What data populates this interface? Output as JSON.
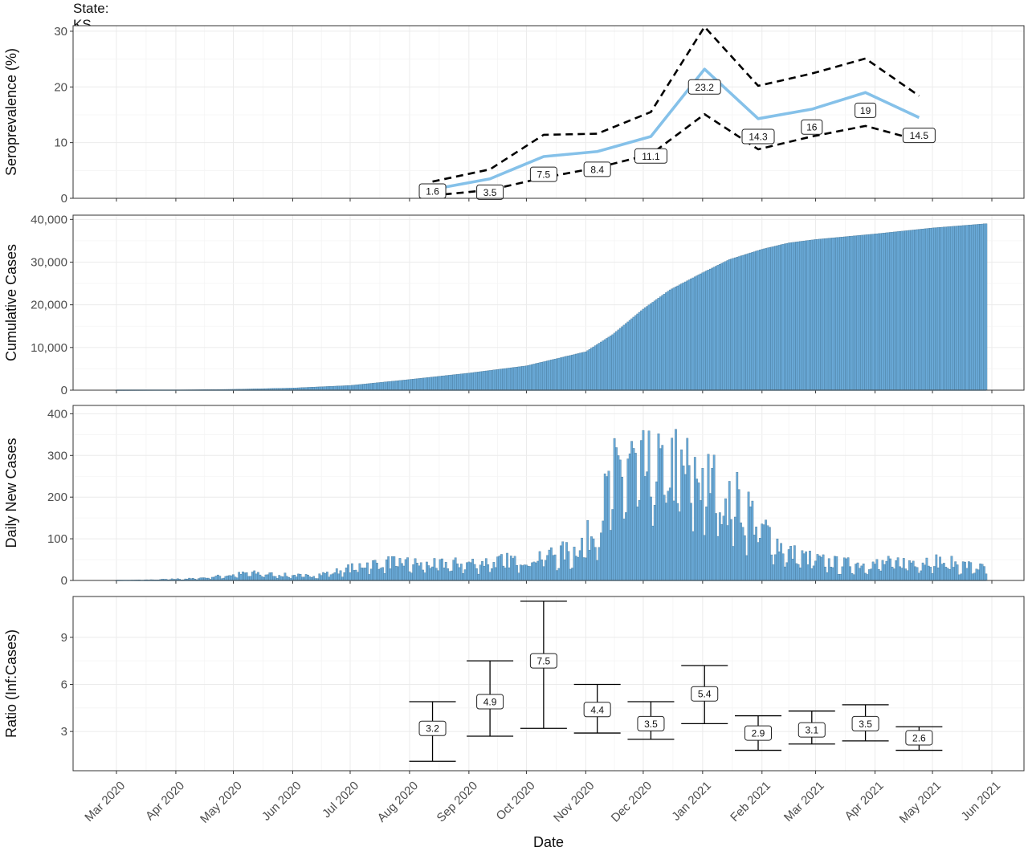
{
  "title": "State: KS",
  "xlabel": "Date",
  "x_ticks": [
    "Mar 2020",
    "Apr 2020",
    "May 2020",
    "Jun 2020",
    "Jul 2020",
    "Aug 2020",
    "Sep 2020",
    "Oct 2020",
    "Nov 2020",
    "Dec 2020",
    "Jan 2021",
    "Feb 2021",
    "Mar 2021",
    "Apr 2021",
    "May 2021",
    "Jun 2021"
  ],
  "x_tick_dates": [
    "2020-03-01",
    "2020-04-01",
    "2020-05-01",
    "2020-06-01",
    "2020-07-01",
    "2020-08-01",
    "2020-09-01",
    "2020-10-01",
    "2020-11-01",
    "2020-12-01",
    "2021-01-01",
    "2021-02-01",
    "2021-03-01",
    "2021-04-01",
    "2021-05-01",
    "2021-06-01"
  ],
  "colors": {
    "series": "#85c1e9",
    "bar_fill": "#6aaad8",
    "bar_edge": "#3f6f8f",
    "ci_line": "#000000",
    "grid_major": "#ebebeb",
    "panel_border": "#333333"
  },
  "chart_data": [
    {
      "type": "line",
      "ylabel": "Seroprevalence (%)",
      "ylim": [
        0,
        31
      ],
      "yticks": [
        0,
        10,
        20,
        30
      ],
      "legend": "none",
      "grid": true,
      "series": [
        {
          "name": "",
          "style": "solid",
          "x": [
            "2020-08-13",
            "2020-09-12",
            "2020-10-10",
            "2020-11-07",
            "2020-12-05",
            "2021-01-02",
            "2021-01-30",
            "2021-02-27",
            "2021-03-27",
            "2021-04-24"
          ],
          "values": [
            1.6,
            3.5,
            7.5,
            8.4,
            11.1,
            23.2,
            14.3,
            16,
            19,
            14.5
          ]
        },
        {
          "name": "",
          "style": "dashed",
          "x": [
            "2020-08-13",
            "2020-09-12",
            "2020-10-10",
            "2020-11-07",
            "2020-12-05",
            "2021-01-02",
            "2021-01-30",
            "2021-02-27",
            "2021-03-27",
            "2021-04-24"
          ],
          "values": [
            3,
            5.2,
            11.4,
            11.6,
            15.5,
            30.8,
            20.2,
            22.4,
            25.1,
            18.4
          ]
        },
        {
          "name": "",
          "style": "dashed",
          "x": [
            "2020-08-13",
            "2020-09-12",
            "2020-10-10",
            "2020-11-07",
            "2020-12-05",
            "2021-01-02",
            "2021-01-30",
            "2021-02-27",
            "2021-03-27",
            "2021-04-24"
          ],
          "values": [
            0.5,
            1.5,
            3.7,
            5.5,
            7.9,
            15.1,
            8.8,
            11.1,
            13,
            10.4
          ]
        }
      ],
      "labels": [
        {
          "x": "2020-08-13",
          "y": 1.3,
          "text": "1.6"
        },
        {
          "x": "2020-09-12",
          "y": 1.1,
          "text": "3.5"
        },
        {
          "x": "2020-10-10",
          "y": 4.3,
          "text": "7.5"
        },
        {
          "x": "2020-11-07",
          "y": 5.2,
          "text": "8.4"
        },
        {
          "x": "2020-12-05",
          "y": 7.6,
          "text": "11.1"
        },
        {
          "x": "2021-01-02",
          "y": 20.0,
          "text": "23.2"
        },
        {
          "x": "2021-01-30",
          "y": 11.1,
          "text": "14.3"
        },
        {
          "x": "2021-02-27",
          "y": 12.8,
          "text": "16"
        },
        {
          "x": "2021-03-27",
          "y": 15.8,
          "text": "19"
        },
        {
          "x": "2021-04-24",
          "y": 11.3,
          "text": "14.5"
        }
      ]
    },
    {
      "type": "bar",
      "ylabel": "Cumulative Cases",
      "ylim": [
        0,
        41000
      ],
      "yticks": [
        0,
        10000,
        20000,
        30000,
        40000
      ],
      "ytick_labels": [
        "0",
        "10,000",
        "20,000",
        "30,000",
        "40,000"
      ],
      "grid": true,
      "x_start": "2020-03-01",
      "x_end": "2021-05-29",
      "curve_points": [
        [
          "2020-03-01",
          0
        ],
        [
          "2020-04-01",
          50
        ],
        [
          "2020-05-01",
          200
        ],
        [
          "2020-06-01",
          500
        ],
        [
          "2020-07-01",
          1100
        ],
        [
          "2020-08-01",
          2500
        ],
        [
          "2020-09-01",
          4000
        ],
        [
          "2020-10-01",
          5700
        ],
        [
          "2020-11-01",
          9000
        ],
        [
          "2020-11-15",
          13000
        ],
        [
          "2020-12-01",
          19000
        ],
        [
          "2020-12-15",
          23500
        ],
        [
          "2021-01-01",
          27500
        ],
        [
          "2021-01-15",
          30600
        ],
        [
          "2021-02-01",
          33000
        ],
        [
          "2021-02-15",
          34500
        ],
        [
          "2021-03-01",
          35300
        ],
        [
          "2021-04-01",
          36600
        ],
        [
          "2021-05-01",
          38000
        ],
        [
          "2021-05-29",
          39000
        ]
      ]
    },
    {
      "type": "bar",
      "ylabel": "Daily New Cases",
      "ylim": [
        0,
        420
      ],
      "yticks": [
        0,
        100,
        200,
        300,
        400
      ],
      "grid": true,
      "x_start": "2020-03-01",
      "x_end": "2021-05-29",
      "curve_points": [
        [
          "2020-03-01",
          0
        ],
        [
          "2020-03-20",
          2
        ],
        [
          "2020-04-10",
          5
        ],
        [
          "2020-04-25",
          12
        ],
        [
          "2020-05-10",
          20
        ],
        [
          "2020-05-25",
          15
        ],
        [
          "2020-06-10",
          12
        ],
        [
          "2020-06-25",
          25
        ],
        [
          "2020-07-10",
          45
        ],
        [
          "2020-07-25",
          50
        ],
        [
          "2020-08-10",
          42
        ],
        [
          "2020-08-25",
          45
        ],
        [
          "2020-09-10",
          50
        ],
        [
          "2020-09-25",
          55
        ],
        [
          "2020-10-10",
          70
        ],
        [
          "2020-10-25",
          78
        ],
        [
          "2020-11-05",
          130
        ],
        [
          "2020-11-15",
          270
        ],
        [
          "2020-11-22",
          330
        ],
        [
          "2020-12-01",
          290
        ],
        [
          "2020-12-15",
          310
        ],
        [
          "2021-01-01",
          280
        ],
        [
          "2021-01-15",
          230
        ],
        [
          "2021-01-25",
          190
        ],
        [
          "2021-02-05",
          120
        ],
        [
          "2021-02-15",
          75
        ],
        [
          "2021-03-01",
          55
        ],
        [
          "2021-03-15",
          45
        ],
        [
          "2021-04-01",
          45
        ],
        [
          "2021-04-15",
          50
        ],
        [
          "2021-05-01",
          55
        ],
        [
          "2021-05-29",
          32
        ]
      ]
    },
    {
      "type": "errorbar",
      "ylabel": "Ratio (Inf:Cases)",
      "ylim": [
        0.5,
        11.6
      ],
      "yticks": [
        3,
        6,
        9
      ],
      "grid": true,
      "points": [
        {
          "x": "2020-08-13",
          "low": 1.1,
          "high": 4.9,
          "label": "3.2",
          "label_y": 3.2
        },
        {
          "x": "2020-09-12",
          "low": 2.7,
          "high": 7.5,
          "label": "4.9",
          "label_y": 4.9
        },
        {
          "x": "2020-10-10",
          "low": 3.2,
          "high": 11.3,
          "label": "7.5",
          "label_y": 7.5
        },
        {
          "x": "2020-11-07",
          "low": 2.9,
          "high": 6.0,
          "label": "4.4",
          "label_y": 4.4
        },
        {
          "x": "2020-12-05",
          "low": 2.5,
          "high": 4.9,
          "label": "3.5",
          "label_y": 3.5
        },
        {
          "x": "2021-01-02",
          "low": 3.5,
          "high": 7.2,
          "label": "5.4",
          "label_y": 5.4
        },
        {
          "x": "2021-01-30",
          "low": 1.8,
          "high": 4.0,
          "label": "2.9",
          "label_y": 2.9
        },
        {
          "x": "2021-02-27",
          "low": 2.2,
          "high": 4.3,
          "label": "3.1",
          "label_y": 3.1
        },
        {
          "x": "2021-03-27",
          "low": 2.4,
          "high": 4.7,
          "label": "3.5",
          "label_y": 3.5
        },
        {
          "x": "2021-04-24",
          "low": 1.8,
          "high": 3.3,
          "label": "2.6",
          "label_y": 2.6
        }
      ]
    }
  ]
}
